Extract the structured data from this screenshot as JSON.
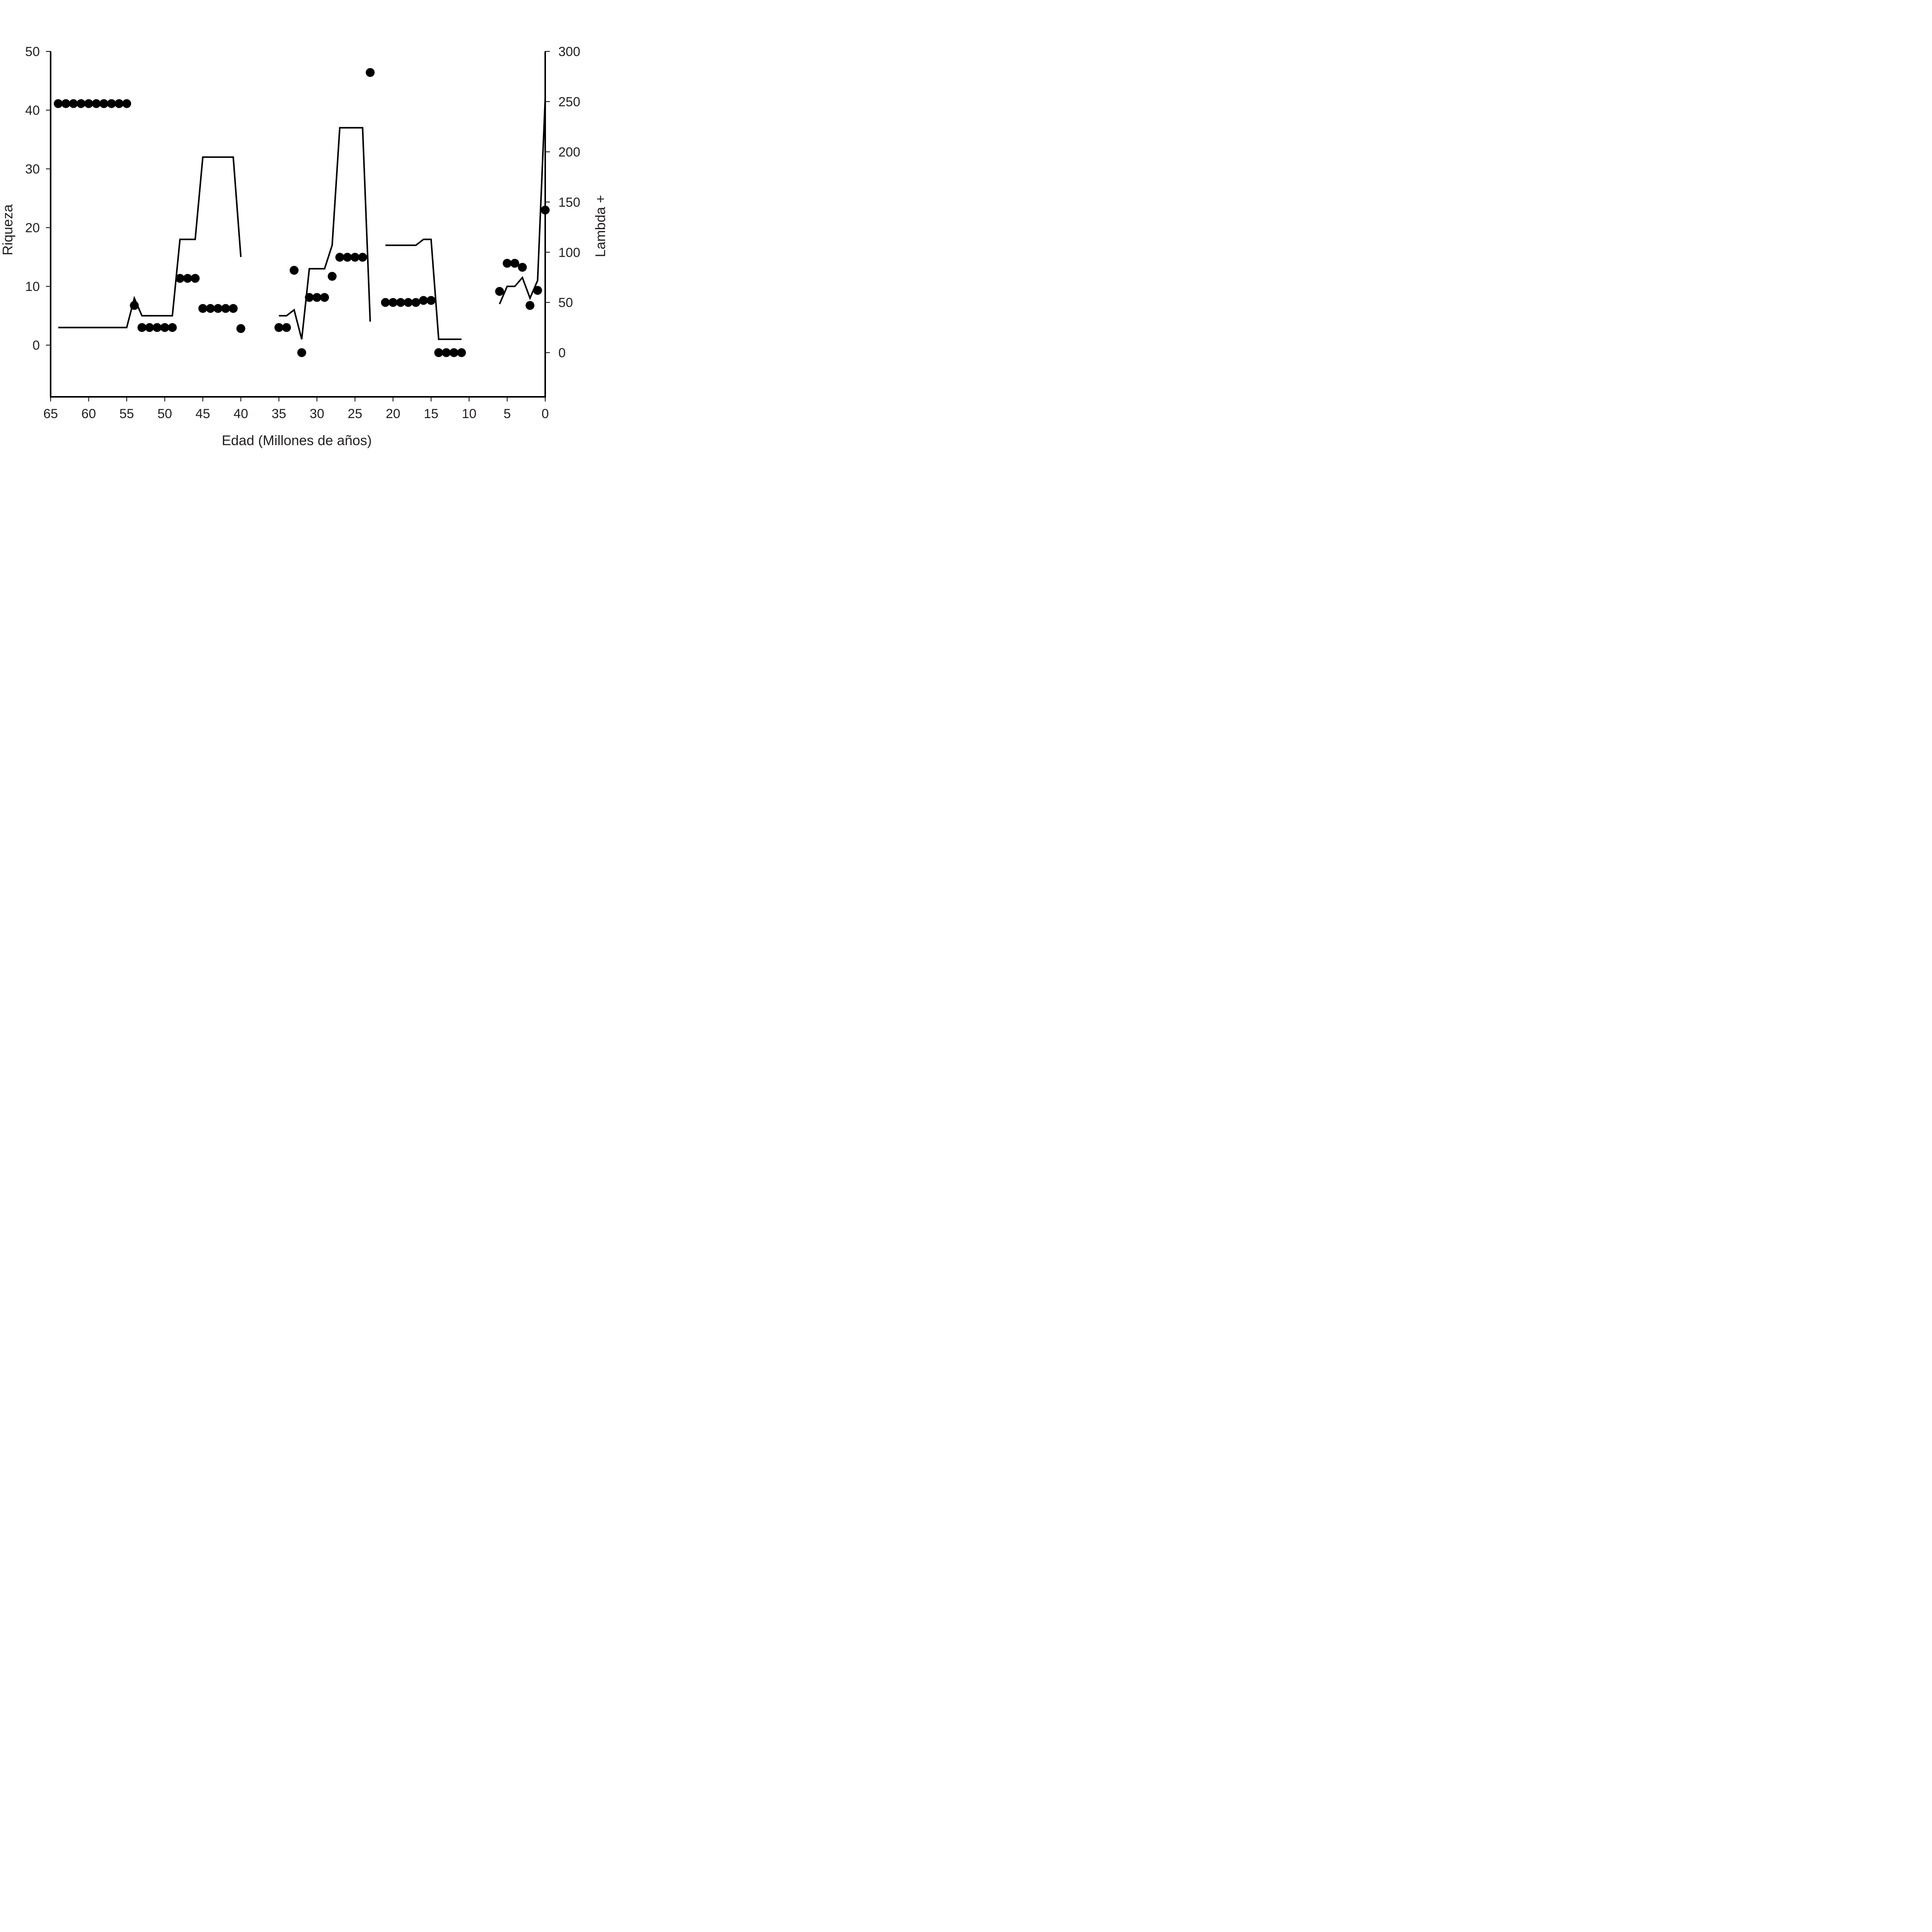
{
  "chart_data": {
    "type": "line+scatter",
    "title": "",
    "xlabel": "Edad (Millones de años)",
    "ylabel_left": "Riqueza",
    "ylabel_right": "Lambda +",
    "x_reversed": true,
    "xlim": [
      65,
      0
    ],
    "ylim_left": [
      -8.8,
      50
    ],
    "ylim_right": [
      -44,
      300
    ],
    "x_ticks": [
      65,
      60,
      55,
      50,
      45,
      40,
      35,
      30,
      25,
      20,
      15,
      10,
      5,
      0
    ],
    "y_ticks_left": [
      0,
      10,
      20,
      30,
      40,
      50
    ],
    "y_ticks_right": [
      0,
      50,
      100,
      150,
      200,
      250,
      300
    ],
    "grid": false,
    "color": "#000000",
    "line_series": {
      "axis": "left",
      "segments": [
        [
          [
            64,
            3
          ],
          [
            55,
            3
          ],
          [
            54,
            8
          ],
          [
            53,
            5
          ],
          [
            49,
            5
          ],
          [
            48,
            18
          ],
          [
            46,
            18
          ],
          [
            45,
            32
          ],
          [
            41,
            32
          ],
          [
            40,
            15
          ]
        ],
        [
          [
            35,
            5
          ],
          [
            34,
            5
          ],
          [
            33,
            6
          ],
          [
            32,
            1
          ],
          [
            31,
            13
          ],
          [
            29,
            13
          ],
          [
            28,
            17
          ],
          [
            27,
            37
          ],
          [
            24,
            37
          ],
          [
            23,
            4
          ]
        ],
        [
          [
            21,
            17
          ],
          [
            17,
            17
          ],
          [
            16,
            18
          ],
          [
            15,
            18
          ],
          [
            14,
            1
          ],
          [
            11,
            1
          ]
        ],
        [
          [
            6,
            7
          ],
          [
            5,
            10
          ],
          [
            4,
            10
          ],
          [
            3,
            11.5
          ],
          [
            2,
            8
          ],
          [
            1,
            11
          ],
          [
            0,
            42
          ]
        ]
      ]
    },
    "point_series": {
      "axis": "right",
      "points": [
        [
          64,
          248
        ],
        [
          63,
          248
        ],
        [
          62,
          248
        ],
        [
          61,
          248
        ],
        [
          60,
          248
        ],
        [
          59,
          248
        ],
        [
          58,
          248
        ],
        [
          57,
          248
        ],
        [
          56,
          248
        ],
        [
          55,
          248
        ],
        [
          54,
          47
        ],
        [
          53,
          25
        ],
        [
          52,
          25
        ],
        [
          51,
          25
        ],
        [
          50,
          25
        ],
        [
          49,
          25
        ],
        [
          48,
          74
        ],
        [
          47,
          74
        ],
        [
          46,
          74
        ],
        [
          45,
          44
        ],
        [
          44,
          44
        ],
        [
          43,
          44
        ],
        [
          42,
          44
        ],
        [
          41,
          44
        ],
        [
          40,
          24
        ],
        [
          35,
          25
        ],
        [
          34,
          25
        ],
        [
          33,
          82
        ],
        [
          32,
          0
        ],
        [
          31,
          55
        ],
        [
          30,
          55
        ],
        [
          29,
          55
        ],
        [
          28,
          76
        ],
        [
          27,
          95
        ],
        [
          26,
          95
        ],
        [
          25,
          95
        ],
        [
          24,
          95
        ],
        [
          23,
          279
        ],
        [
          21,
          50
        ],
        [
          20,
          50
        ],
        [
          19,
          50
        ],
        [
          18,
          50
        ],
        [
          17,
          50
        ],
        [
          16,
          52
        ],
        [
          15,
          52
        ],
        [
          14,
          0
        ],
        [
          13,
          0
        ],
        [
          12,
          0
        ],
        [
          11,
          0
        ],
        [
          6,
          61
        ],
        [
          5,
          89
        ],
        [
          4,
          89
        ],
        [
          3,
          85
        ],
        [
          2,
          47
        ],
        [
          1,
          62
        ],
        [
          0,
          142
        ]
      ]
    }
  }
}
